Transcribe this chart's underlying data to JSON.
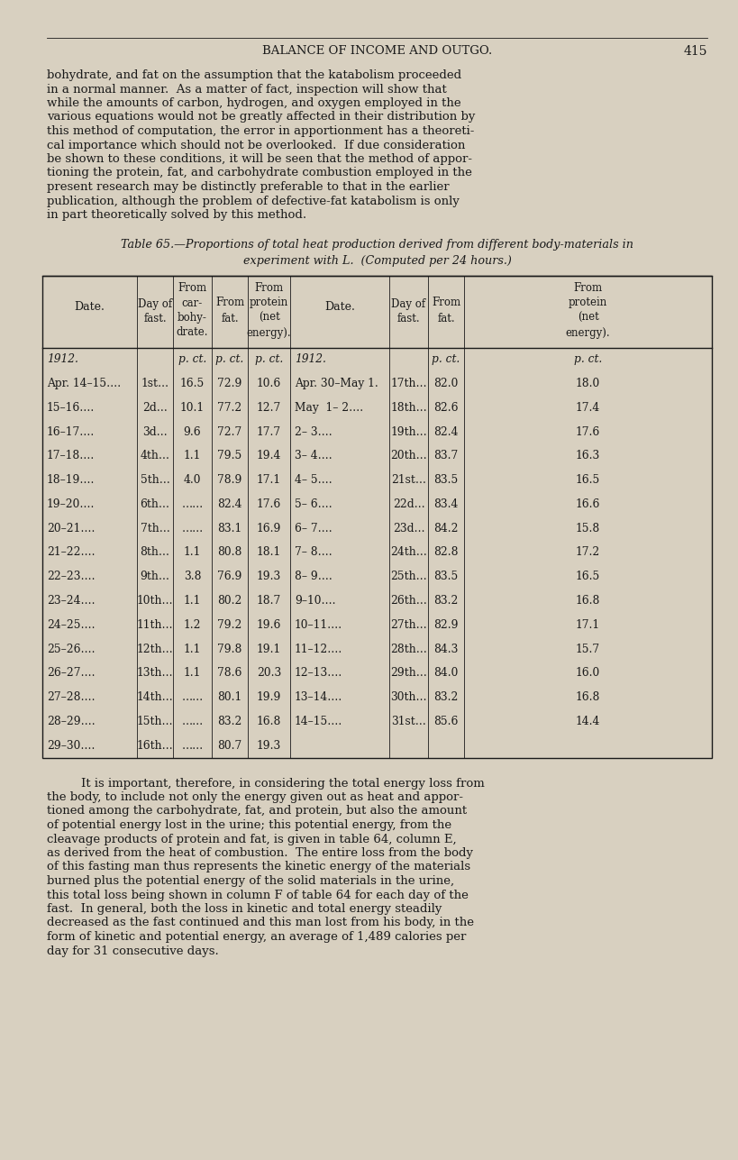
{
  "page_title": "BALANCE OF INCOME AND OUTGO.",
  "page_number": "415",
  "bg_color": "#d8d0c0",
  "text_color": "#1a1a1a",
  "para1": "bohydrate, and fat on the assumption that the katabolism proceeded in a normal manner.  As a matter of fact, inspection will show that while the amounts of carbon, hydrogen, and oxygen employed in the various equations would not be greatly affected in their distribution by this method of computation, the error in apportionment has a theoreti-cal importance which should not be overlooked.  If due consideration be shown to these conditions, it will be seen that the method of appor-tioning the protein, fat, and carbohydrate combustion employed in the present research may be distinctly preferable to that in the earlier publication, although the problem of defective-fat katabolism is only in part theoretically solved by this method.",
  "table_title": "Table 65.—Proportions of total heat production derived from different body-materials in\nexperiment with L.  (Computed per 24 hours.)",
  "col_headers_left": [
    "Date.",
    "Day of\nfast.",
    "From\ncar-\nbohy-\ndrate.",
    "From\nfat.",
    "From\nprotein\n(net\nenergy)."
  ],
  "col_headers_right": [
    "Date.",
    "Day of\nfast.",
    "From\nfat.",
    "From\nprotein\n(net\nenergy)."
  ],
  "left_data": [
    [
      "1912.",
      "",
      "p. ct.",
      "p. ct.",
      "p. ct."
    ],
    [
      "Apr. 14–15….",
      "1st…",
      "16.5",
      "72.9",
      "10.6"
    ],
    [
      "15–16….",
      "2d…",
      "10.1",
      "77.2",
      "12.7"
    ],
    [
      "16–17….",
      "3d…",
      "9.6",
      "72.7",
      "17.7"
    ],
    [
      "17–18….",
      "4th…",
      "1.1",
      "79.5",
      "19.4"
    ],
    [
      "18–19….",
      "5th…",
      "4.0",
      "78.9",
      "17.1"
    ],
    [
      "19–20….",
      "6th…",
      "……",
      "82.4",
      "17.6"
    ],
    [
      "20–21….",
      "7th…",
      "……",
      "83.1",
      "16.9"
    ],
    [
      "21–22….",
      "8th…",
      "1.1",
      "80.8",
      "18.1"
    ],
    [
      "22–23….",
      "9th…",
      "3.8",
      "76.9",
      "19.3"
    ],
    [
      "23–24….",
      "10th…",
      "1.1",
      "80.2",
      "18.7"
    ],
    [
      "24–25….",
      "11th…",
      "1.2",
      "79.2",
      "19.6"
    ],
    [
      "25–26….",
      "12th…",
      "1.1",
      "79.8",
      "19.1"
    ],
    [
      "26–27….",
      "13th…",
      "1.1",
      "78.6",
      "20.3"
    ],
    [
      "27–28….",
      "14th…",
      "……",
      "80.1",
      "19.9"
    ],
    [
      "28–29….",
      "15th…",
      "……",
      "83.2",
      "16.8"
    ],
    [
      "29–30….",
      "16th…",
      "……",
      "80.7",
      "19.3"
    ]
  ],
  "right_data": [
    [
      "1912.",
      "",
      "p. ct.",
      "p. ct."
    ],
    [
      "Apr. 30–May 1.",
      "17th…",
      "82.0",
      "18.0"
    ],
    [
      "May  1– 2….",
      "18th…",
      "82.6",
      "17.4"
    ],
    [
      "2– 3….",
      "19th…",
      "82.4",
      "17.6"
    ],
    [
      "3– 4….",
      "20th…",
      "83.7",
      "16.3"
    ],
    [
      "4– 5….",
      "21st…",
      "83.5",
      "16.5"
    ],
    [
      "5– 6….",
      "22d…",
      "83.4",
      "16.6"
    ],
    [
      "6– 7….",
      "23d…",
      "84.2",
      "15.8"
    ],
    [
      "7– 8….",
      "24th…",
      "82.8",
      "17.2"
    ],
    [
      "8– 9….",
      "25th…",
      "83.5",
      "16.5"
    ],
    [
      "9–10….",
      "26th…",
      "83.2",
      "16.8"
    ],
    [
      "10–11….",
      "27th…",
      "82.9",
      "17.1"
    ],
    [
      "11–12….",
      "28th…",
      "84.3",
      "15.7"
    ],
    [
      "12–13….",
      "29th…",
      "84.0",
      "16.0"
    ],
    [
      "13–14….",
      "30th…",
      "83.2",
      "16.8"
    ],
    [
      "14–15….",
      "31st…",
      "85.6",
      "14.4"
    ],
    [
      "",
      "",
      "",
      ""
    ]
  ],
  "para2": "It is important, therefore, in considering the total energy loss from the body, to include not only the energy given out as heat and appor-tioned among the carbohydrate, fat, and protein, but also the amount of potential energy lost in the urine; this potential energy, from the cleavage products of protein and fat, is given in table 64, column E, as derived from the heat of combustion.  The entire loss from the body of this fasting man thus represents the kinetic energy of the materials burned plus the potential energy of the solid materials in the urine, this total loss being shown in column F of table 64 for each day of the fast.  In general, both the loss in kinetic and total energy steadily decreased as the fast continued and this man lost from his body, in the form of kinetic and potential energy, an average of 1,489 calories per day for 31 consecutive days."
}
